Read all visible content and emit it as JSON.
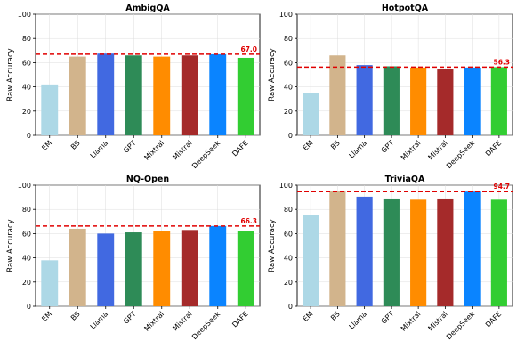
{
  "chart_data": [
    {
      "type": "bar",
      "title": "AmbigQA",
      "ylabel": "Raw Accuracy",
      "ylim": [
        0,
        100
      ],
      "yticks": [
        0,
        20,
        40,
        60,
        80,
        100
      ],
      "grid": true,
      "categories": [
        "EM",
        "BS",
        "Llama",
        "GPT",
        "Mixtral",
        "Mistral",
        "DeepSeek",
        "DAFE"
      ],
      "values": [
        42,
        65,
        67.5,
        66,
        65,
        66,
        67,
        64
      ],
      "colors": [
        "#add8e6",
        "#d2b48c",
        "#4169e1",
        "#2e8b57",
        "#ff8c00",
        "#a52a2a",
        "#0a84ff",
        "#32cd32"
      ],
      "reference_line": {
        "value": 67.0,
        "label": "67.0",
        "color": "#e00000",
        "style": "dashed"
      }
    },
    {
      "type": "bar",
      "title": "HotpotQA",
      "ylabel": "Raw Accuracy",
      "ylim": [
        0,
        100
      ],
      "yticks": [
        0,
        20,
        40,
        60,
        80,
        100
      ],
      "grid": true,
      "categories": [
        "EM",
        "BS",
        "Llama",
        "GPT",
        "Mixtral",
        "Mistral",
        "DeepSeek",
        "DAFE"
      ],
      "values": [
        35,
        66,
        58,
        57,
        56,
        55,
        56,
        56.3
      ],
      "colors": [
        "#add8e6",
        "#d2b48c",
        "#4169e1",
        "#2e8b57",
        "#ff8c00",
        "#a52a2a",
        "#0a84ff",
        "#32cd32"
      ],
      "reference_line": {
        "value": 56.3,
        "label": "56.3",
        "color": "#e00000",
        "style": "dashed"
      }
    },
    {
      "type": "bar",
      "title": "NQ-Open",
      "ylabel": "Raw Accuracy",
      "ylim": [
        0,
        100
      ],
      "yticks": [
        0,
        20,
        40,
        60,
        80,
        100
      ],
      "grid": true,
      "categories": [
        "EM",
        "BS",
        "Llama",
        "GPT",
        "Mixtral",
        "Mistral",
        "DeepSeek",
        "DAFE"
      ],
      "values": [
        38,
        64,
        60,
        61,
        62,
        63,
        66.3,
        62
      ],
      "colors": [
        "#add8e6",
        "#d2b48c",
        "#4169e1",
        "#2e8b57",
        "#ff8c00",
        "#a52a2a",
        "#0a84ff",
        "#32cd32"
      ],
      "reference_line": {
        "value": 66.3,
        "label": "66.3",
        "color": "#e00000",
        "style": "dashed"
      }
    },
    {
      "type": "bar",
      "title": "TriviaQA",
      "ylabel": "Raw Accuracy",
      "ylim": [
        0,
        100
      ],
      "yticks": [
        0,
        20,
        40,
        60,
        80,
        100
      ],
      "grid": true,
      "categories": [
        "EM",
        "BS",
        "Llama",
        "GPT",
        "Mixtral",
        "Mistral",
        "DeepSeek",
        "DAFE"
      ],
      "values": [
        75,
        95,
        90.5,
        89,
        88,
        89,
        94.7,
        88
      ],
      "colors": [
        "#add8e6",
        "#d2b48c",
        "#4169e1",
        "#2e8b57",
        "#ff8c00",
        "#a52a2a",
        "#0a84ff",
        "#32cd32"
      ],
      "reference_line": {
        "value": 94.7,
        "label": "94.7",
        "color": "#e00000",
        "style": "dashed"
      }
    }
  ]
}
